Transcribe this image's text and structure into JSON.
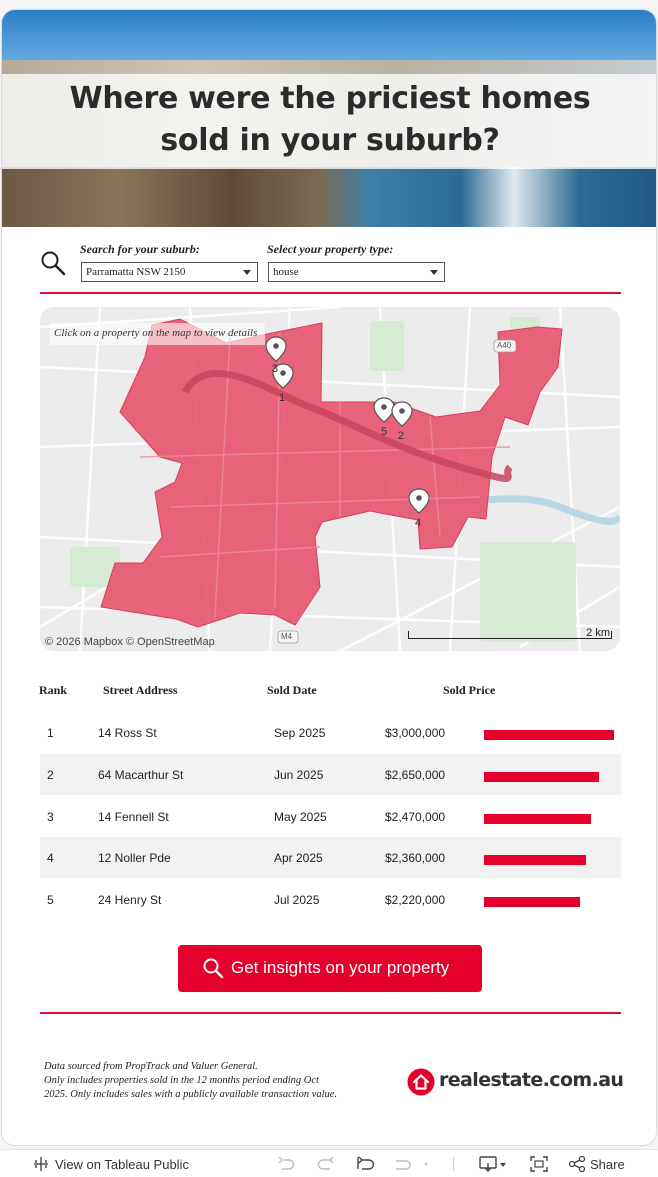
{
  "hero": {
    "title_line1": "Where were the priciest homes",
    "title_line2": "sold in your suburb?"
  },
  "filters": {
    "suburb_label": "Search for your suburb:",
    "suburb_value": "Parramatta NSW 2150",
    "type_label": "Select your property type:",
    "type_value": "house"
  },
  "map": {
    "hint": "Click on a property on the map to view details",
    "attribution": "© 2026 Mapbox  © OpenStreetMap",
    "scale_label": "2 km",
    "road_labels": [
      "A40",
      "M4"
    ],
    "pins": [
      "1",
      "2",
      "3",
      "4",
      "5"
    ],
    "suburb_color": "#e8546e"
  },
  "table": {
    "headers": {
      "rank": "Rank",
      "address": "Street Address",
      "date": "Sold Date",
      "price": "Sold Price"
    },
    "rows": [
      {
        "rank": "1",
        "address": "14 Ross St",
        "date": "Sep 2025",
        "price": "$3,000,000",
        "value": 3000000
      },
      {
        "rank": "2",
        "address": "64 Macarthur St",
        "date": "Jun 2025",
        "price": "$2,650,000",
        "value": 2650000
      },
      {
        "rank": "3",
        "address": "14 Fennell St",
        "date": "May 2025",
        "price": "$2,470,000",
        "value": 2470000
      },
      {
        "rank": "4",
        "address": "12 Noller Pde",
        "date": "Apr 2025",
        "price": "$2,360,000",
        "value": 2360000
      },
      {
        "rank": "5",
        "address": "24 Henry St",
        "date": "Jul 2025",
        "price": "$2,220,000",
        "value": 2220000
      }
    ],
    "bar_color": "#e4002b"
  },
  "cta": {
    "label": "Get insights on your property",
    "icon": "search-icon"
  },
  "footer": {
    "note_line1": "Data sourced from PropTrack and Valuer General.",
    "note_line2": "Only includes properties sold in the 12 months period ending Oct",
    "note_line3": "2025. Only includes sales with a publicly available transaction value.",
    "logo_text": "realestate.com.au",
    "brand_color": "#e4002b"
  },
  "toolbar": {
    "view_label": "View on Tableau Public",
    "share_label": "Share"
  }
}
